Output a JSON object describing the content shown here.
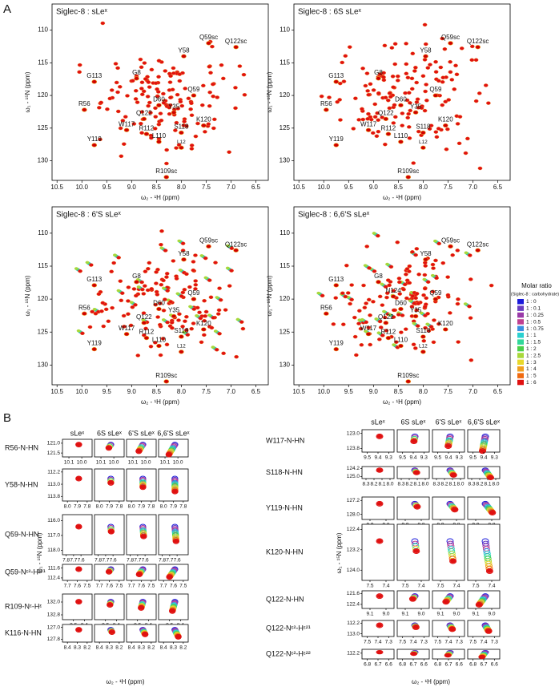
{
  "panel_a": {
    "label": "A",
    "x_label": "ω₂ - ¹H  (ppm)",
    "y_label": "ω₁ - ¹⁵N  (ppm)",
    "xlim": [
      10.6,
      6.25
    ],
    "ylim": [
      106,
      133
    ],
    "xticks": [
      10.5,
      {
        "value": 10,
        "label": "10.0"
      },
      9.5,
      {
        "value": 9,
        "label": "9.0"
      },
      8.5,
      {
        "value": 8,
        "label": "8.0"
      },
      7.5,
      {
        "value": 7,
        "label": "7.0"
      },
      6.5
    ],
    "yticks": [
      110,
      115,
      120,
      125,
      130
    ],
    "peaks": [
      {
        "name": "Q59sc",
        "x": 7.45,
        "y": 112.0
      },
      {
        "name": "Q122sc",
        "x": 6.9,
        "y": 112.6
      },
      {
        "name": "Y58",
        "x": 7.95,
        "y": 114.0
      },
      {
        "name": "G8",
        "x": 8.9,
        "y": 117.4
      },
      {
        "name": "G113",
        "x": 9.75,
        "y": 117.9
      },
      {
        "name": "Q59",
        "x": 7.75,
        "y": 120.0
      },
      {
        "name": "D60",
        "x": 8.45,
        "y": 121.5
      },
      {
        "name": "R56",
        "x": 9.95,
        "y": 122.2
      },
      {
        "name": "Y35",
        "x": 8.15,
        "y": 122.6
      },
      {
        "name": "Q122",
        "x": 8.75,
        "y": 123.6
      },
      {
        "name": "K120",
        "x": 7.55,
        "y": 124.6
      },
      {
        "name": "W117",
        "x": 9.1,
        "y": 125.3
      },
      {
        "name": "R112",
        "x": 8.7,
        "y": 125.9
      },
      {
        "name": "S118",
        "x": 8.0,
        "y": 125.7
      },
      {
        "name": "L110",
        "x": 8.45,
        "y": 127.1
      },
      {
        "name": "Y119",
        "x": 9.75,
        "y": 127.6
      },
      {
        "name": "L12",
        "x": 8.0,
        "y": 128.0
      },
      {
        "name": "R109sc",
        "x": 8.3,
        "y": 132.5
      }
    ],
    "spectra": [
      {
        "title": "Siglec-8 : sLeˣ"
      },
      {
        "title": "Siglec-8 : 6S sLeˣ"
      },
      {
        "title": "Siglec-8 : 6'S sLeˣ"
      },
      {
        "title": "Siglec-8 : 6,6'S sLeˣ",
        "extra_peaks": [
          {
            "name": "N124",
            "x": 8.6,
            "y": 119.6
          }
        ]
      }
    ],
    "legend": {
      "title": "Molar ratio",
      "subtitle": "(Siglec-8 : carbohydrate)",
      "entries": [
        {
          "label": "1 : 0",
          "color": "#1a1adb"
        },
        {
          "label": "1 : 0.1",
          "color": "#6b3fc0"
        },
        {
          "label": "1 : 0.25",
          "color": "#9a3aa8"
        },
        {
          "label": "1 : 0.5",
          "color": "#c04090"
        },
        {
          "label": "1 : 0.75",
          "color": "#3a8fe0"
        },
        {
          "label": "1 : 1",
          "color": "#2ad0d0"
        },
        {
          "label": "1 : 1.5",
          "color": "#30d89a"
        },
        {
          "label": "1 : 2",
          "color": "#4ad04a"
        },
        {
          "label": "1 : 2.5",
          "color": "#a8d83a"
        },
        {
          "label": "1 : 3",
          "color": "#e8d82a"
        },
        {
          "label": "1 : 4",
          "color": "#f0a020"
        },
        {
          "label": "1 : 5",
          "color": "#f06a10"
        },
        {
          "label": "1 : 6",
          "color": "#e01010"
        }
      ]
    }
  },
  "panel_b": {
    "label": "B",
    "columns": [
      "sLeˣ",
      "6S sLeˣ",
      "6'S sLeˣ",
      "6,6'S sLeˣ"
    ],
    "x_label": "ω₂ - ¹H  (ppm)",
    "y_label": "ω₁ - ¹⁵N  (ppm)",
    "left": [
      {
        "name": "R56-N-HN",
        "xlim": [
          10.15,
          9.92
        ],
        "ylim": [
          120.8,
          121.7
        ],
        "xticks": [
          10.1,
          {
            "value": 10,
            "label": "10.0"
          }
        ],
        "yticks": [
          {
            "value": 121,
            "label": "121.0"
          },
          121.5
        ]
      },
      {
        "name": "Y58-N-HN",
        "xlim": [
          8.05,
          7.75
        ],
        "ylim": [
          112.0,
          114.1
        ],
        "xticks": [
          {
            "value": 8,
            "label": "8.0"
          },
          7.9,
          7.8
        ],
        "yticks": [
          112.2,
          {
            "value": 113,
            "label": "113.0"
          },
          113.8
        ]
      },
      {
        "name": "Q59-N-HN",
        "xlim": [
          7.85,
          7.45
        ],
        "ylim": [
          115.6,
          118.3
        ],
        "xticks": [
          7.8,
          7.7,
          7.6
        ],
        "yticks": [
          {
            "value": 116,
            "label": "116.0"
          },
          {
            "value": 117,
            "label": "117.0"
          },
          {
            "value": 118,
            "label": "118.0"
          }
        ]
      },
      {
        "name": "Q59-Nᵋ²-Hᵋ²¹",
        "xlim": [
          7.75,
          7.45
        ],
        "ylim": [
          111.3,
          112.6
        ],
        "xticks": [
          7.7,
          7.6,
          7.5
        ],
        "yticks": [
          111.6,
          112.4
        ]
      },
      {
        "name": "R109-Nᵋ-Hᵋ",
        "xlim": [
          8.6,
          8.33
        ],
        "ylim": [
          131.5,
          133.1
        ],
        "xticks": [
          8.5,
          8.4
        ],
        "yticks": [
          {
            "value": 132,
            "label": "132.0"
          },
          132.8
        ]
      },
      {
        "name": "K116-N-HN",
        "xlim": [
          8.45,
          8.15
        ],
        "ylim": [
          126.8,
          128.0
        ],
        "xticks": [
          8.4,
          8.3,
          8.2
        ],
        "yticks": [
          {
            "value": 127,
            "label": "127.0"
          },
          127.8
        ]
      }
    ],
    "right": [
      {
        "name": "W117-N-HN",
        "xlim": [
          9.55,
          9.25
        ],
        "ylim": [
          122.8,
          124.0
        ],
        "xticks": [
          9.5,
          9.4,
          9.3
        ],
        "yticks": [
          {
            "value": 123,
            "label": "123.0"
          },
          123.8
        ]
      },
      {
        "name": "S118-N-HN",
        "xlim": [
          8.35,
          7.95
        ],
        "ylim": [
          124.0,
          125.2
        ],
        "xticks": [
          8.3,
          8.2,
          8.1,
          {
            "value": 8,
            "label": "8.0"
          }
        ],
        "yticks": [
          124.2,
          {
            "value": 125,
            "label": "125.0"
          }
        ]
      },
      {
        "name": "Y119-N-HN",
        "xlim": [
          9.95,
          9.75
        ],
        "ylim": [
          127.0,
          128.3
        ],
        "xticks": [
          9.9,
          9.8
        ],
        "yticks": [
          127.2,
          {
            "value": 128,
            "label": "128.0"
          }
        ]
      },
      {
        "name": "K120-N-HN",
        "xlim": [
          7.55,
          7.35
        ],
        "ylim": [
          122.2,
          124.4
        ],
        "xticks": [
          7.5,
          7.4
        ],
        "yticks": [
          122.4,
          123.2,
          {
            "value": 124,
            "label": "124.0"
          }
        ]
      },
      {
        "name": "Q122-N-HN",
        "xlim": [
          9.15,
          8.95
        ],
        "ylim": [
          121.4,
          122.7
        ],
        "xticks": [
          9.1,
          {
            "value": 9,
            "label": "9.0"
          }
        ],
        "yticks": [
          121.6,
          122.4
        ]
      },
      {
        "name": "Q122-Nᵋ²-Hᵋ²¹",
        "xlim": [
          7.55,
          7.25
        ],
        "ylim": [
          112.0,
          113.2
        ],
        "xticks": [
          7.5,
          7.4,
          7.3
        ],
        "yticks": [
          112.2,
          {
            "value": 113,
            "label": "113.0"
          }
        ]
      },
      {
        "name": "Q122-Nᵋ²-Hᵋ²²",
        "xlim": [
          6.85,
          6.55
        ],
        "ylim": [
          112.0,
          112.5
        ],
        "xticks": [
          6.8,
          6.7,
          6.6
        ],
        "yticks": [
          112.2
        ]
      }
    ]
  }
}
